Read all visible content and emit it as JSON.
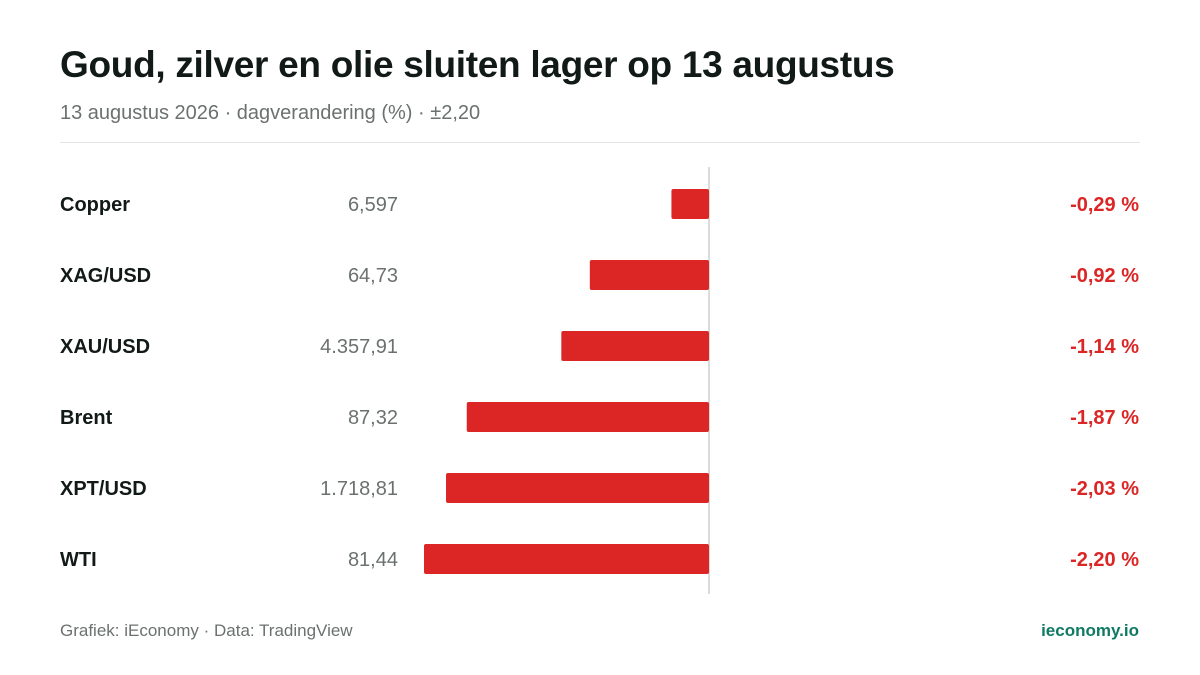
{
  "header": {
    "title": "Goud, zilver en olie sluiten lager op 13 augustus",
    "subtitle": "13 augustus 2026 · dagverandering (%) · ±2,20"
  },
  "footer": {
    "source": "Grafiek: iEconomy · Data: TradingView",
    "brand": "ieconomy.io"
  },
  "colors": {
    "negative": "#dc2626",
    "brand": "#0f7a63",
    "text": "#111a16",
    "muted": "#6b716e",
    "axis": "#d9dcdb"
  },
  "chart_data": {
    "type": "bar",
    "orientation": "horizontal",
    "title": "Goud, zilver en olie sluiten lager op 13 augustus",
    "subtitle": "13 augustus 2026 · dagverandering (%) · ±2,20",
    "xlim": [
      -2.2,
      2.2
    ],
    "grid": false,
    "legend": "none",
    "categories": [
      "Copper",
      "XAG/USD",
      "XAU/USD",
      "Brent",
      "XPT/USD",
      "WTI"
    ],
    "prices": [
      "6,597",
      "64,73",
      "4.357,91",
      "87,32",
      "1.718,81",
      "81,44"
    ],
    "values": [
      -0.29,
      -0.92,
      -1.14,
      -1.87,
      -2.03,
      -2.2
    ],
    "value_labels": [
      "-0,29 %",
      "-0,92 %",
      "-1,14 %",
      "-1,87 %",
      "-2,03 %",
      "-2,20 %"
    ]
  }
}
